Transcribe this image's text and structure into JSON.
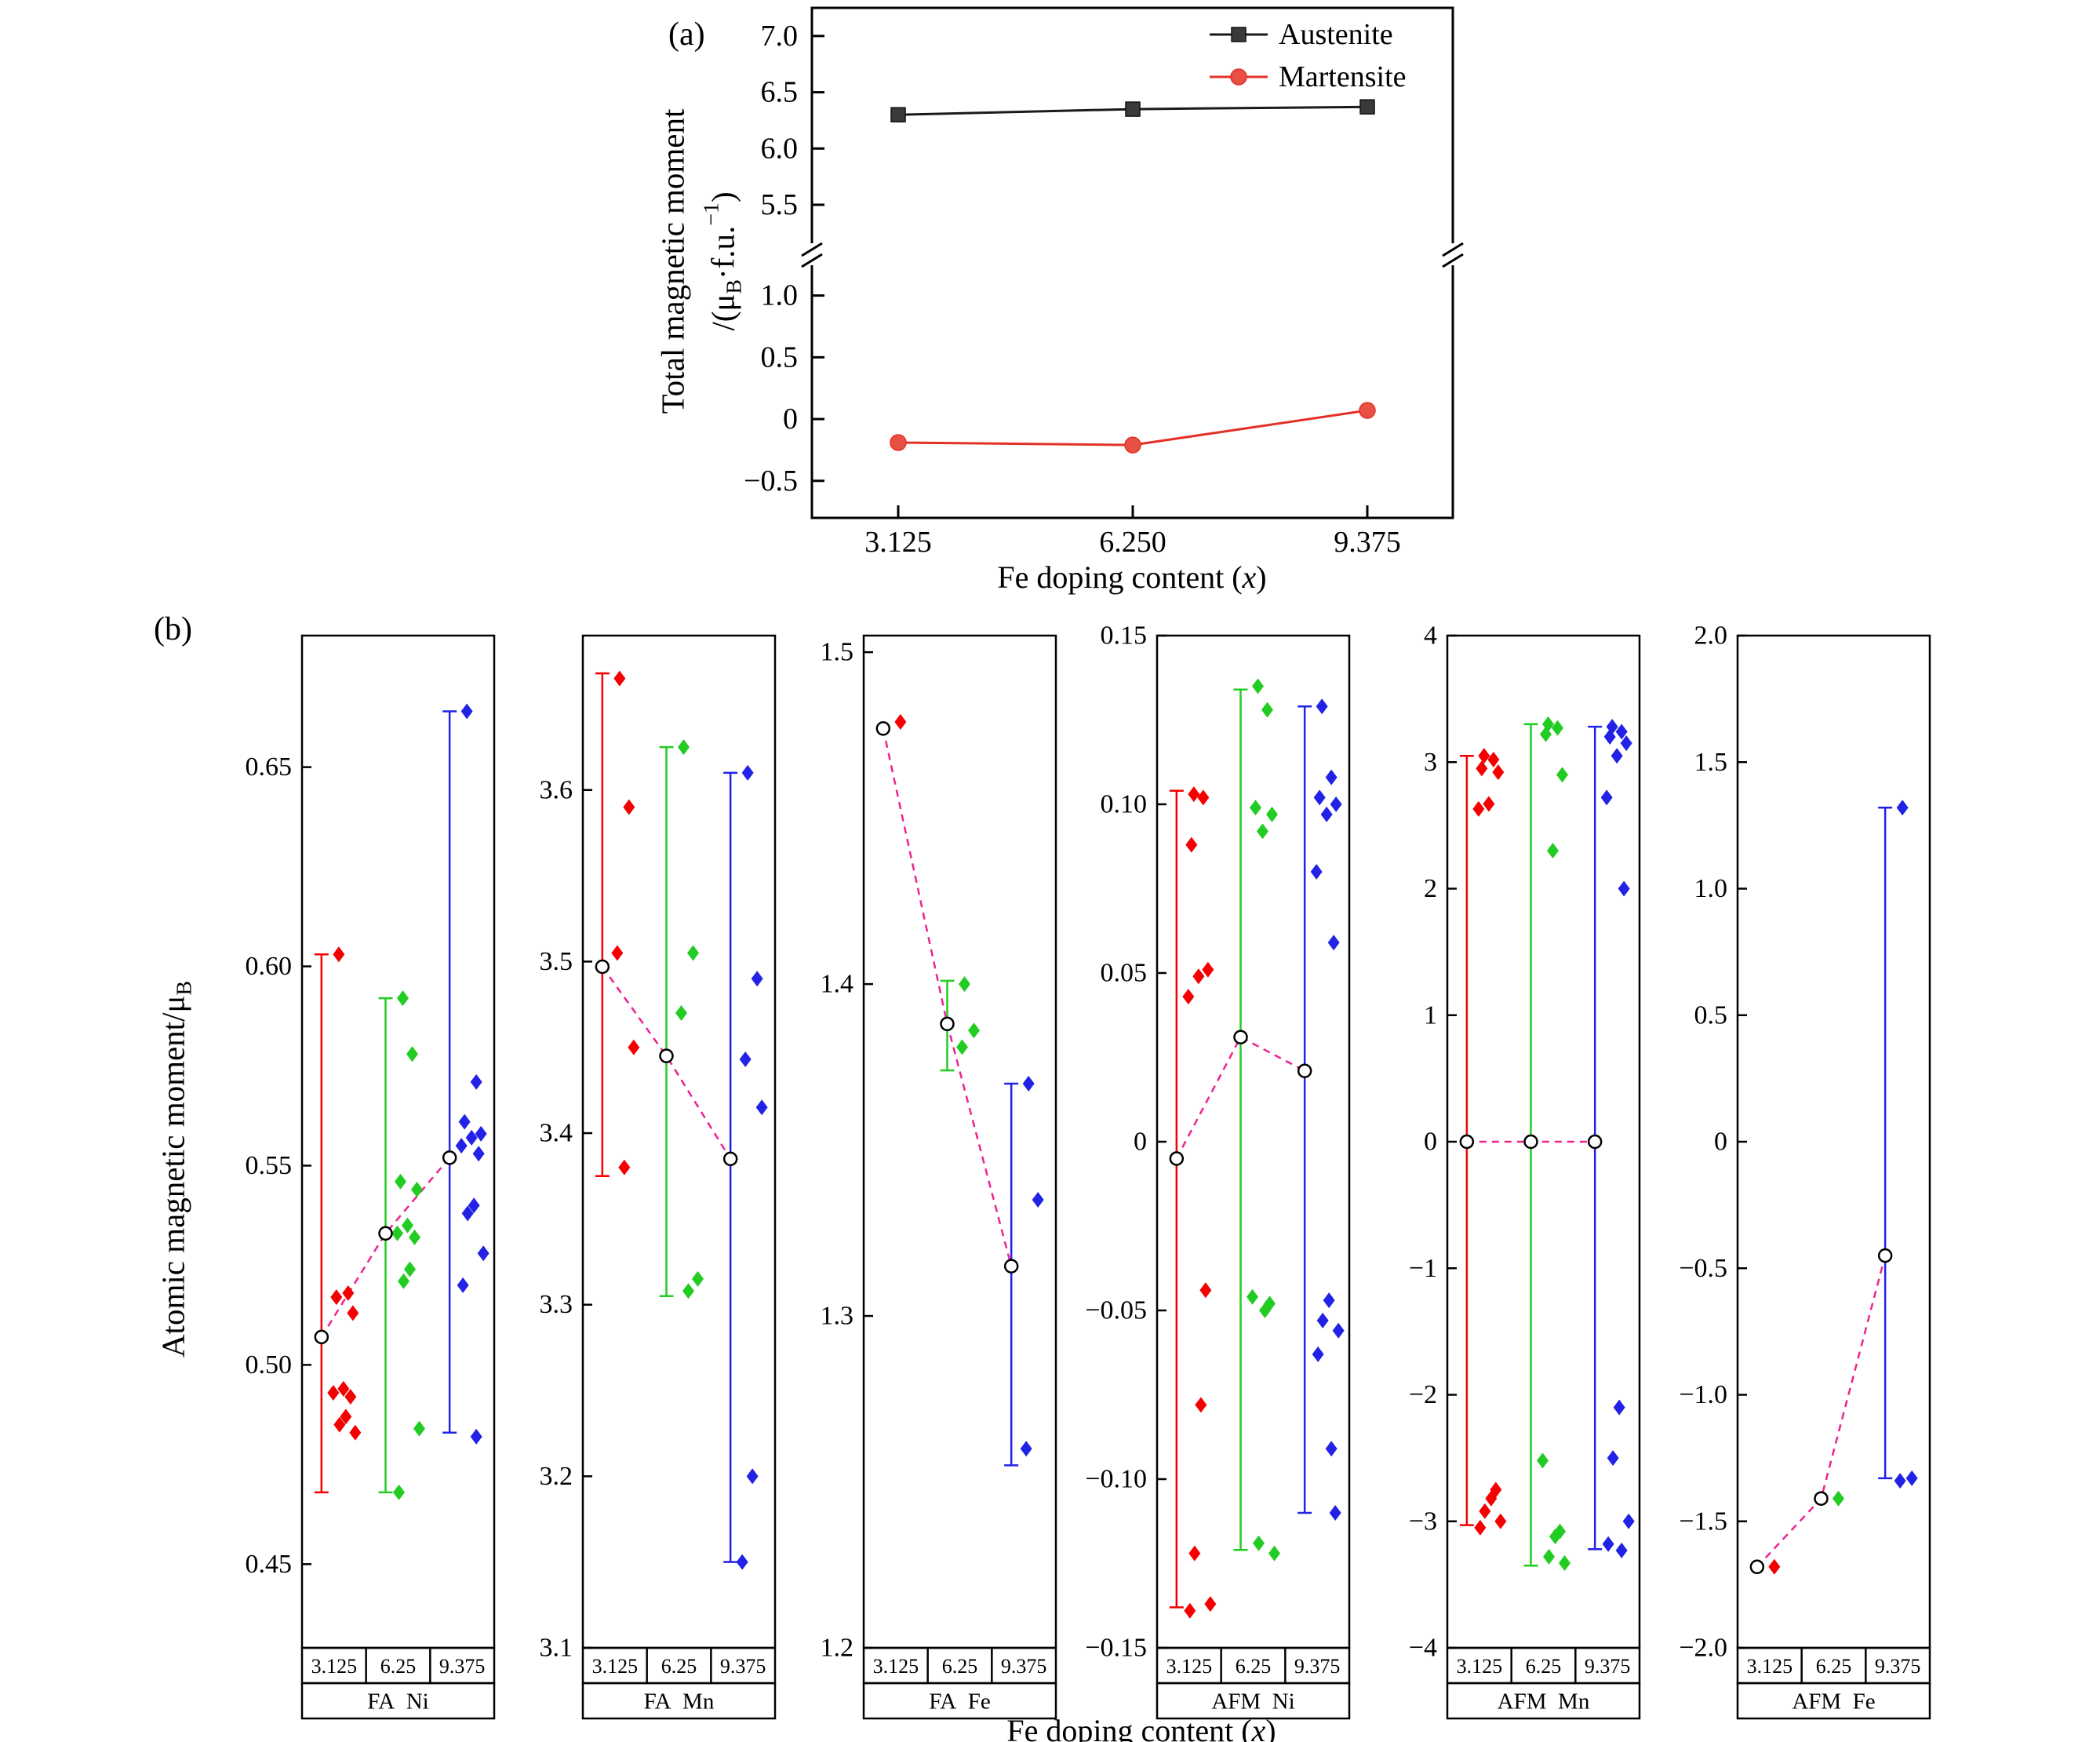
{
  "labels": {
    "panel_a": "(a)",
    "panel_b": "(b)",
    "x_axis": {
      "pre": "Fe doping content (",
      "var": "x",
      "post": ")"
    },
    "y_axis_a": {
      "line1": "Total magnetic moment",
      "l2_pre": "/(μ",
      "l2_sub": "B",
      "l2_mid": "·f.u.",
      "l2_sup": "−1",
      "l2_post": ")"
    },
    "y_axis_b": {
      "pre": "Atomic magnetic moment/μ",
      "sub": "B"
    }
  },
  "colors": {
    "categories": [
      "#f40000",
      "#22cc22",
      "#2222e6"
    ],
    "mean_line": "#ee2290",
    "mean_marker_fill": "#ffffff",
    "mean_marker_edge": "#000000",
    "axis": "#000000"
  },
  "chart_data": [
    {
      "id": "total-magnetic-moment",
      "type": "line",
      "xlabel": "Fe doping content (x)",
      "ylabel": "Total magnetic moment/(μB·f.u.−1)",
      "x_values": [
        3.125,
        6.25,
        9.375
      ],
      "x_tick_labels": [
        "3.125",
        "6.250",
        "9.375"
      ],
      "y_axis_break": true,
      "y_upper_range": [
        5.2,
        7.25
      ],
      "y_lower_range": [
        -0.8,
        1.22
      ],
      "y_upper_ticks": [
        {
          "v": 7.0,
          "label": "7.0"
        },
        {
          "v": 6.5,
          "label": "6.5"
        },
        {
          "v": 6.0,
          "label": "6.0"
        },
        {
          "v": 5.5,
          "label": "5.5"
        }
      ],
      "y_lower_ticks": [
        {
          "v": 1.0,
          "label": "1.0"
        },
        {
          "v": 0.5,
          "label": "0.5"
        },
        {
          "v": 0,
          "label": "0"
        },
        {
          "v": -0.5,
          "label": "−0.5"
        }
      ],
      "legend_position": "top-right",
      "series": [
        {
          "name": "Austenite",
          "marker": "square",
          "color": "#3a3a3a",
          "line_color": "#1a1a1a",
          "values": [
            6.3,
            6.35,
            6.37
          ]
        },
        {
          "name": "Martensite",
          "marker": "circle",
          "color": "#e85043",
          "line_color": "#e33127",
          "values": [
            -0.19,
            -0.21,
            0.07
          ]
        }
      ]
    },
    {
      "id": "fa-ni",
      "type": "scatter",
      "group_label": "FA  Ni",
      "categories": [
        "3.125",
        "6.25",
        "9.375"
      ],
      "ylim": [
        0.429,
        0.683
      ],
      "yticks": [
        {
          "v": 0.65,
          "label": "0.65"
        },
        {
          "v": 0.6,
          "label": "0.60"
        },
        {
          "v": 0.55,
          "label": "0.55"
        },
        {
          "v": 0.5,
          "label": "0.50"
        },
        {
          "v": 0.45,
          "label": "0.45"
        }
      ],
      "series": [
        {
          "category": "3.125",
          "values": [
            0.603,
            0.518,
            0.517,
            0.513,
            0.494,
            0.493,
            0.492,
            0.487,
            0.485,
            0.483
          ]
        },
        {
          "category": "6.25",
          "values": [
            0.592,
            0.578,
            0.546,
            0.544,
            0.535,
            0.533,
            0.532,
            0.524,
            0.521,
            0.484,
            0.468
          ]
        },
        {
          "category": "9.375",
          "values": [
            0.664,
            0.571,
            0.561,
            0.558,
            0.557,
            0.555,
            0.553,
            0.54,
            0.538,
            0.528,
            0.52,
            0.482
          ]
        }
      ],
      "means": [
        0.507,
        0.533,
        0.552
      ],
      "error_bars": [
        [
          0.468,
          0.603
        ],
        [
          0.468,
          0.592
        ],
        [
          0.483,
          0.664
        ]
      ]
    },
    {
      "id": "fa-mn",
      "type": "scatter",
      "group_label": "FA  Mn",
      "categories": [
        "3.125",
        "6.25",
        "9.375"
      ],
      "ylim": [
        3.1,
        3.69
      ],
      "yticks": [
        {
          "v": 3.6,
          "label": "3.6"
        },
        {
          "v": 3.5,
          "label": "3.5"
        },
        {
          "v": 3.4,
          "label": "3.4"
        },
        {
          "v": 3.3,
          "label": "3.3"
        },
        {
          "v": 3.2,
          "label": "3.2"
        },
        {
          "v": 3.1,
          "label": "3.1"
        }
      ],
      "series": [
        {
          "category": "3.125",
          "values": [
            3.665,
            3.59,
            3.505,
            3.45,
            3.38
          ]
        },
        {
          "category": "6.25",
          "values": [
            3.625,
            3.505,
            3.47,
            3.315,
            3.308
          ]
        },
        {
          "category": "9.375",
          "values": [
            3.61,
            3.49,
            3.443,
            3.415,
            3.2,
            3.15
          ]
        }
      ],
      "means": [
        3.497,
        3.445,
        3.385
      ],
      "error_bars": [
        [
          3.375,
          3.668
        ],
        [
          3.305,
          3.625
        ],
        [
          3.15,
          3.61
        ]
      ]
    },
    {
      "id": "fa-fe",
      "type": "scatter",
      "group_label": "FA  Fe",
      "categories": [
        "3.125",
        "6.25",
        "9.375"
      ],
      "ylim": [
        1.2,
        1.505
      ],
      "yticks": [
        {
          "v": 1.5,
          "label": "1.5"
        },
        {
          "v": 1.4,
          "label": "1.4"
        },
        {
          "v": 1.3,
          "label": "1.3"
        },
        {
          "v": 1.2,
          "label": "1.2"
        }
      ],
      "series": [
        {
          "category": "3.125",
          "values": [
            1.479
          ]
        },
        {
          "category": "6.25",
          "values": [
            1.4,
            1.386,
            1.381
          ]
        },
        {
          "category": "9.375",
          "values": [
            1.37,
            1.335,
            1.26
          ]
        }
      ],
      "means": [
        1.477,
        1.388,
        1.315
      ],
      "error_bars": [
        null,
        [
          1.374,
          1.401
        ],
        [
          1.255,
          1.37
        ]
      ]
    },
    {
      "id": "afm-ni",
      "type": "scatter",
      "group_label": "AFM  Ni",
      "categories": [
        "3.125",
        "6.25",
        "9.375"
      ],
      "ylim": [
        -0.15,
        0.15
      ],
      "yticks": [
        {
          "v": 0.15,
          "label": "0.15"
        },
        {
          "v": 0.1,
          "label": "0.10"
        },
        {
          "v": 0.05,
          "label": "0.05"
        },
        {
          "v": 0,
          "label": "0"
        },
        {
          "v": -0.05,
          "label": "−0.05"
        },
        {
          "v": -0.1,
          "label": "−0.10"
        },
        {
          "v": -0.15,
          "label": "−0.15"
        }
      ],
      "series": [
        {
          "category": "3.125",
          "values": [
            0.103,
            0.102,
            0.088,
            0.051,
            0.049,
            0.043,
            -0.044,
            -0.078,
            -0.122,
            -0.137,
            -0.139
          ]
        },
        {
          "category": "6.25",
          "values": [
            0.135,
            0.128,
            0.099,
            0.097,
            0.092,
            -0.046,
            -0.048,
            -0.05,
            -0.119,
            -0.122
          ]
        },
        {
          "category": "9.375",
          "values": [
            0.129,
            0.108,
            0.102,
            0.1,
            0.097,
            0.08,
            0.059,
            -0.047,
            -0.053,
            -0.056,
            -0.063,
            -0.091,
            -0.11
          ]
        }
      ],
      "means": [
        -0.005,
        0.031,
        0.021
      ],
      "error_bars": [
        [
          -0.138,
          0.104
        ],
        [
          -0.121,
          0.134
        ],
        [
          -0.11,
          0.129
        ]
      ]
    },
    {
      "id": "afm-mn",
      "type": "scatter",
      "group_label": "AFM  Mn",
      "categories": [
        "3.125",
        "6.25",
        "9.375"
      ],
      "ylim": [
        -4,
        4
      ],
      "yticks": [
        {
          "v": 4,
          "label": "4"
        },
        {
          "v": 3,
          "label": "3"
        },
        {
          "v": 2,
          "label": "2"
        },
        {
          "v": 1,
          "label": "1"
        },
        {
          "v": 0,
          "label": "0"
        },
        {
          "v": -1,
          "label": "−1"
        },
        {
          "v": -2,
          "label": "−2"
        },
        {
          "v": -3,
          "label": "−3"
        },
        {
          "v": -4,
          "label": "−4"
        }
      ],
      "series": [
        {
          "category": "3.125",
          "values": [
            3.05,
            3.02,
            2.95,
            2.92,
            2.67,
            2.63,
            -2.75,
            -2.82,
            -2.92,
            -3.0,
            -3.05
          ]
        },
        {
          "category": "6.25",
          "values": [
            3.3,
            3.27,
            3.22,
            2.9,
            2.3,
            -2.52,
            -3.08,
            -3.12,
            -3.28,
            -3.33
          ]
        },
        {
          "category": "9.375",
          "values": [
            3.28,
            3.24,
            3.2,
            3.15,
            3.05,
            2.72,
            2.0,
            -2.1,
            -2.5,
            -3.0,
            -3.18,
            -3.23
          ]
        }
      ],
      "means": [
        0,
        0,
        0
      ],
      "error_bars": [
        [
          -3.03,
          3.05
        ],
        [
          -3.35,
          3.3
        ],
        [
          -3.22,
          3.28
        ]
      ]
    },
    {
      "id": "afm-fe",
      "type": "scatter",
      "group_label": "AFM  Fe",
      "categories": [
        "3.125",
        "6.25",
        "9.375"
      ],
      "ylim": [
        -2,
        2
      ],
      "yticks": [
        {
          "v": 2.0,
          "label": "2.0"
        },
        {
          "v": 1.5,
          "label": "1.5"
        },
        {
          "v": 1.0,
          "label": "1.0"
        },
        {
          "v": 0.5,
          "label": "0.5"
        },
        {
          "v": 0,
          "label": "0"
        },
        {
          "v": -0.5,
          "label": "−0.5"
        },
        {
          "v": -1.0,
          "label": "−1.0"
        },
        {
          "v": -1.5,
          "label": "−1.5"
        },
        {
          "v": -2.0,
          "label": "−2.0"
        }
      ],
      "series": [
        {
          "category": "3.125",
          "values": [
            -1.68
          ]
        },
        {
          "category": "6.25",
          "values": [
            -1.41
          ]
        },
        {
          "category": "9.375",
          "values": [
            1.32,
            -1.33,
            -1.34
          ]
        }
      ],
      "means": [
        -1.68,
        -1.41,
        -0.45
      ],
      "error_bars": [
        null,
        null,
        [
          -1.33,
          1.32
        ]
      ]
    }
  ]
}
